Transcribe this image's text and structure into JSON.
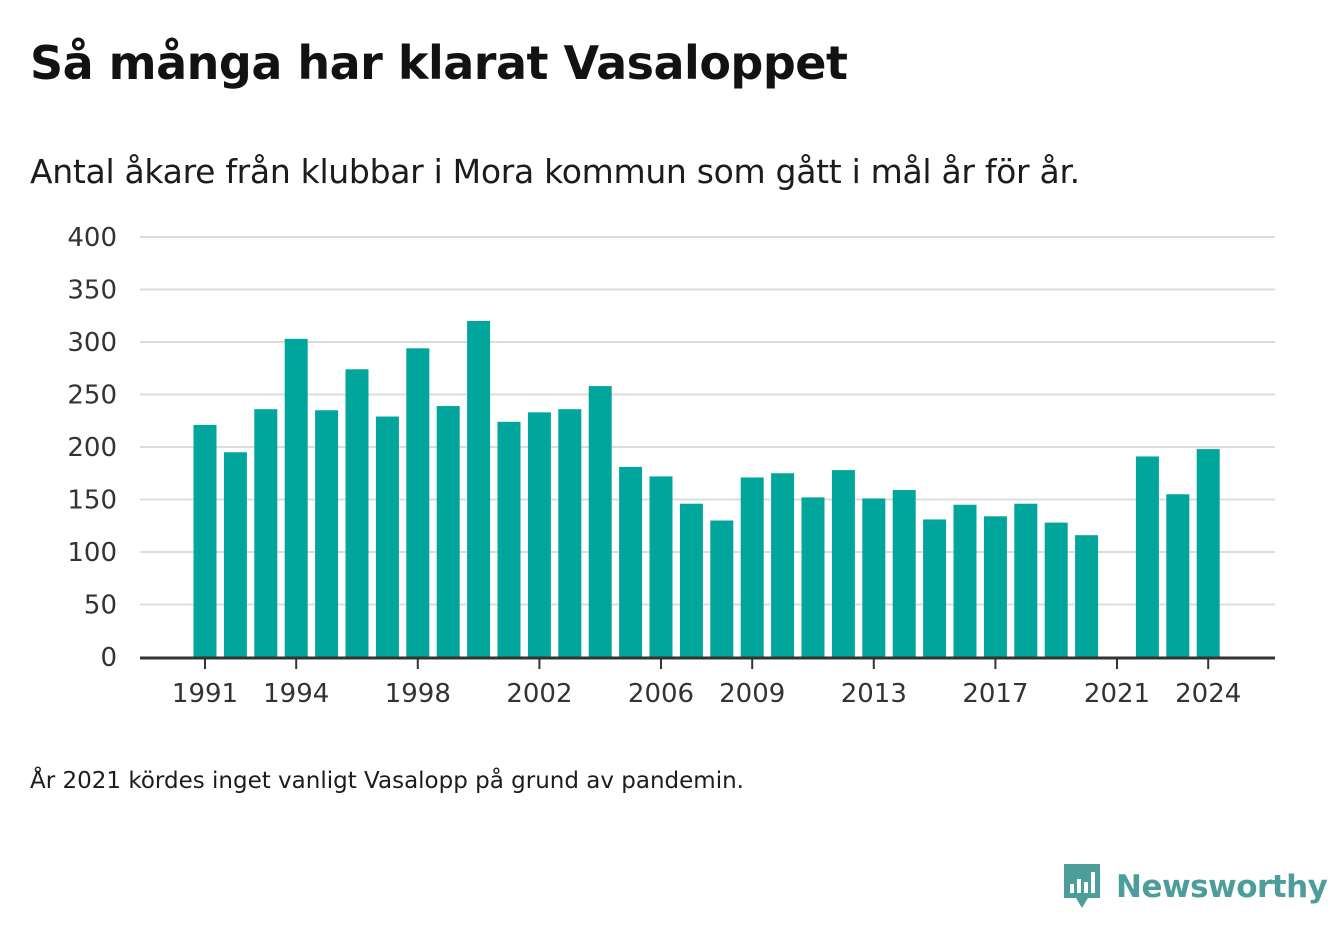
{
  "header": {
    "title": "Så många har klarat Vasaloppet",
    "subtitle": "Antal åkare från klubbar i Mora kommun som gått i mål år för år."
  },
  "footnote": "År 2021 kördes inget vanligt Vasalopp på grund av pandemin.",
  "brand": {
    "name": "Newsworthy",
    "color": "#4d9e9b",
    "icon": "newsworthy-logo-icon"
  },
  "colors": {
    "bar": "#00a59b",
    "grid": "#dcdcdc",
    "axis": "#333333"
  },
  "chart_data": {
    "type": "bar",
    "title": "Så många har klarat Vasaloppet",
    "subtitle": "Antal åkare från klubbar i Mora kommun som gått i mål år för år.",
    "xlabel": "",
    "ylabel": "",
    "ylim": [
      0,
      400
    ],
    "yticks": [
      0,
      50,
      100,
      150,
      200,
      250,
      300,
      350,
      400
    ],
    "xticks": [
      "1991",
      "1994",
      "1998",
      "2002",
      "2006",
      "2009",
      "2013",
      "2017",
      "2021",
      "2024"
    ],
    "grid": true,
    "categories": [
      "1991",
      "1992",
      "1993",
      "1994",
      "1995",
      "1996",
      "1997",
      "1998",
      "1999",
      "2000",
      "2001",
      "2002",
      "2003",
      "2004",
      "2005",
      "2006",
      "2007",
      "2008",
      "2009",
      "2010",
      "2011",
      "2012",
      "2013",
      "2014",
      "2015",
      "2016",
      "2017",
      "2018",
      "2019",
      "2020",
      "2021",
      "2022",
      "2023",
      "2024"
    ],
    "values": [
      221,
      195,
      236,
      303,
      235,
      274,
      229,
      294,
      239,
      320,
      224,
      233,
      236,
      258,
      181,
      172,
      146,
      130,
      171,
      175,
      152,
      178,
      151,
      159,
      131,
      145,
      134,
      146,
      128,
      116,
      null,
      191,
      155,
      198
    ]
  }
}
